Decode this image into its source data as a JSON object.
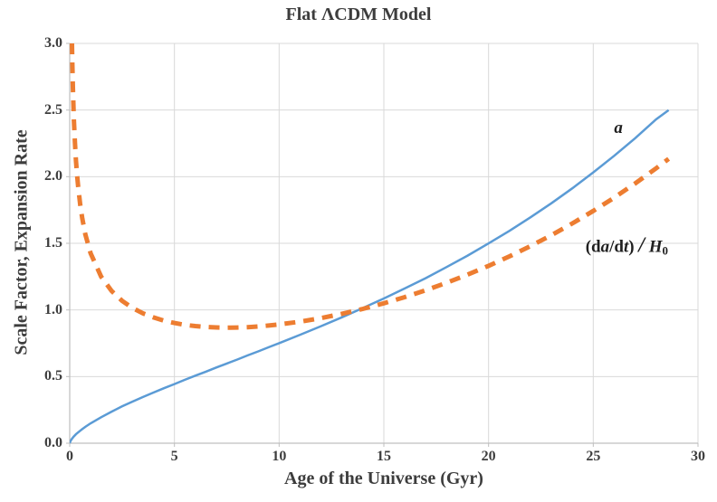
{
  "colors": {
    "series_a": "#5B9BD5",
    "series_dadt": "#ED7D31",
    "gridline": "#D9D9D9",
    "axis": "#BFBFBF",
    "text": "#3d3d3d"
  },
  "chart_data": {
    "type": "line",
    "title": "Flat ΛCDM Model",
    "xlabel": "Age of the Universe (Gyr)",
    "ylabel": "Scale Factor, Expansion Rate",
    "xlim": [
      0,
      30
    ],
    "ylim": [
      0,
      3
    ],
    "grid": true,
    "legend_position": "inline-annotations",
    "xticks": [
      0,
      5,
      10,
      15,
      20,
      25,
      30
    ],
    "xtick_labels": [
      "0",
      "5",
      "10",
      "15",
      "20",
      "25",
      "30"
    ],
    "yticks": [
      0,
      0.5,
      1,
      1.5,
      2,
      2.5,
      3
    ],
    "ytick_labels": [
      "0.0",
      "0.5",
      "1.0",
      "1.5",
      "2.0",
      "2.5",
      "3.0"
    ],
    "series": [
      {
        "name": "a",
        "label": "a",
        "style": "solid",
        "color": "#5B9BD5",
        "points": [
          [
            0,
            0
          ],
          [
            0.02,
            0.011
          ],
          [
            0.05,
            0.02
          ],
          [
            0.1,
            0.032
          ],
          [
            0.15,
            0.042
          ],
          [
            0.2,
            0.051
          ],
          [
            0.3,
            0.067
          ],
          [
            0.4,
            0.081
          ],
          [
            0.5,
            0.094
          ],
          [
            0.6,
            0.106
          ],
          [
            0.75,
            0.123
          ],
          [
            1,
            0.149
          ],
          [
            1.5,
            0.195
          ],
          [
            2,
            0.237
          ],
          [
            2.5,
            0.276
          ],
          [
            3,
            0.312
          ],
          [
            3.5,
            0.347
          ],
          [
            4,
            0.38
          ],
          [
            4.5,
            0.413
          ],
          [
            5,
            0.444
          ],
          [
            5.5,
            0.476
          ],
          [
            6,
            0.507
          ],
          [
            6.5,
            0.537
          ],
          [
            7,
            0.568
          ],
          [
            7.5,
            0.598
          ],
          [
            8,
            0.628
          ],
          [
            8.5,
            0.659
          ],
          [
            9,
            0.689
          ],
          [
            9.5,
            0.72
          ],
          [
            10,
            0.751
          ],
          [
            11,
            0.814
          ],
          [
            12,
            0.878
          ],
          [
            13,
            0.945
          ],
          [
            14,
            1.015
          ],
          [
            15,
            1.086
          ],
          [
            16,
            1.161
          ],
          [
            17,
            1.239
          ],
          [
            18,
            1.322
          ],
          [
            19,
            1.408
          ],
          [
            20,
            1.499
          ],
          [
            21,
            1.594
          ],
          [
            22,
            1.695
          ],
          [
            23,
            1.801
          ],
          [
            24,
            1.913
          ],
          [
            25,
            2.032
          ],
          [
            26,
            2.157
          ],
          [
            27,
            2.289
          ],
          [
            28,
            2.43
          ],
          [
            28.6,
            2.5
          ]
        ]
      },
      {
        "name": "dadt",
        "label": "(da/dt) / H0",
        "style": "dashed",
        "color": "#ED7D31",
        "points": [
          [
            0.107,
            3.0
          ],
          [
            0.12,
            2.879
          ],
          [
            0.15,
            2.672
          ],
          [
            0.2,
            2.428
          ],
          [
            0.25,
            2.254
          ],
          [
            0.3,
            2.121
          ],
          [
            0.35,
            2.015
          ],
          [
            0.4,
            1.928
          ],
          [
            0.5,
            1.79
          ],
          [
            0.6,
            1.686
          ],
          [
            0.75,
            1.566
          ],
          [
            1,
            1.425
          ],
          [
            1.5,
            1.25
          ],
          [
            2,
            1.142
          ],
          [
            2.5,
            1.069
          ],
          [
            3,
            1.015
          ],
          [
            3.5,
            0.974
          ],
          [
            4,
            0.944
          ],
          [
            4.5,
            0.92
          ],
          [
            5,
            0.902
          ],
          [
            5.5,
            0.888
          ],
          [
            6,
            0.879
          ],
          [
            6.5,
            0.872
          ],
          [
            7,
            0.869
          ],
          [
            7.5,
            0.867
          ],
          [
            8,
            0.868
          ],
          [
            8.5,
            0.871
          ],
          [
            9,
            0.876
          ],
          [
            9.5,
            0.883
          ],
          [
            10,
            0.891
          ],
          [
            11,
            0.912
          ],
          [
            12,
            0.939
          ],
          [
            13,
            0.971
          ],
          [
            14,
            1.008
          ],
          [
            15,
            1.05
          ],
          [
            16,
            1.096
          ],
          [
            17,
            1.148
          ],
          [
            18,
            1.204
          ],
          [
            19,
            1.265
          ],
          [
            20,
            1.331
          ],
          [
            21,
            1.402
          ],
          [
            22,
            1.479
          ],
          [
            23,
            1.561
          ],
          [
            24,
            1.649
          ],
          [
            25,
            1.743
          ],
          [
            26,
            1.843
          ],
          [
            27,
            1.949
          ],
          [
            28,
            2.063
          ],
          [
            28.6,
            2.134
          ]
        ]
      }
    ],
    "annotations": [
      {
        "name": "series-label-a",
        "x": 26.2,
        "y": 2.36,
        "italic": true,
        "text": "a"
      },
      {
        "name": "series-label-dadt",
        "x": 26.6,
        "y": 1.48,
        "segments": [
          {
            "t": "(d"
          },
          {
            "t": "a",
            "i": true
          },
          {
            "t": "/d"
          },
          {
            "t": "t",
            "i": true
          },
          {
            "t": ") "
          },
          {
            "t": "/",
            "i": true,
            "big": true
          },
          {
            "t": " "
          },
          {
            "t": "H",
            "i": true
          },
          {
            "t": "0",
            "sub": true
          }
        ]
      }
    ]
  }
}
